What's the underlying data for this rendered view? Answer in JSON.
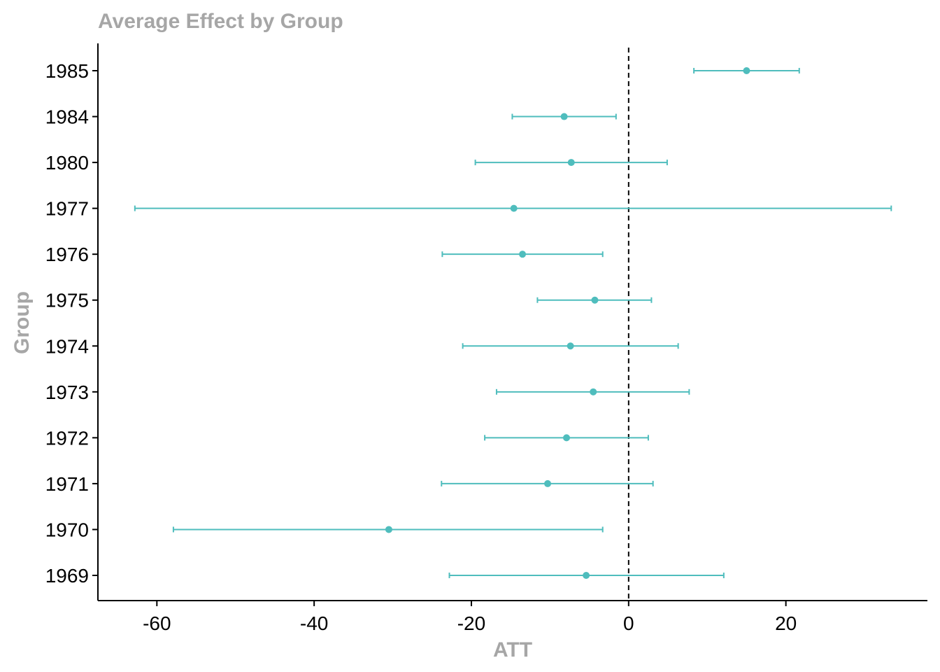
{
  "chart_data": {
    "type": "scatter",
    "subtype": "coefficient-plot-with-error-bars",
    "title": "Average Effect by Group",
    "xlabel": "ATT",
    "ylabel": "Group",
    "xlim": [
      -67.5,
      38
    ],
    "xticks": [
      -60,
      -40,
      -20,
      0,
      20
    ],
    "xtick_labels": [
      "-60",
      "-40",
      "-20",
      "0",
      "20"
    ],
    "reference_line": {
      "x": 0,
      "style": "dashed"
    },
    "grid": false,
    "legend": "none",
    "color": "#4fbdbd",
    "categories": [
      "1985",
      "1984",
      "1980",
      "1977",
      "1976",
      "1975",
      "1974",
      "1973",
      "1972",
      "1971",
      "1970",
      "1969"
    ],
    "points": [
      {
        "group": "1985",
        "att": 15.0,
        "lower": 8.3,
        "upper": 21.7
      },
      {
        "group": "1984",
        "att": -8.2,
        "lower": -14.8,
        "upper": -1.6
      },
      {
        "group": "1980",
        "att": -7.3,
        "lower": -19.5,
        "upper": 4.9
      },
      {
        "group": "1977",
        "att": -14.6,
        "lower": -62.8,
        "upper": 33.4
      },
      {
        "group": "1976",
        "att": -13.5,
        "lower": -23.7,
        "upper": -3.3
      },
      {
        "group": "1975",
        "att": -4.3,
        "lower": -11.6,
        "upper": 2.9
      },
      {
        "group": "1974",
        "att": -7.4,
        "lower": -21.1,
        "upper": 6.3
      },
      {
        "group": "1973",
        "att": -4.5,
        "lower": -16.8,
        "upper": 7.7
      },
      {
        "group": "1972",
        "att": -7.9,
        "lower": -18.3,
        "upper": 2.5
      },
      {
        "group": "1971",
        "att": -10.3,
        "lower": -23.8,
        "upper": 3.1
      },
      {
        "group": "1970",
        "att": -30.5,
        "lower": -57.9,
        "upper": -3.3
      },
      {
        "group": "1969",
        "att": -5.4,
        "lower": -22.8,
        "upper": 12.1
      }
    ]
  }
}
